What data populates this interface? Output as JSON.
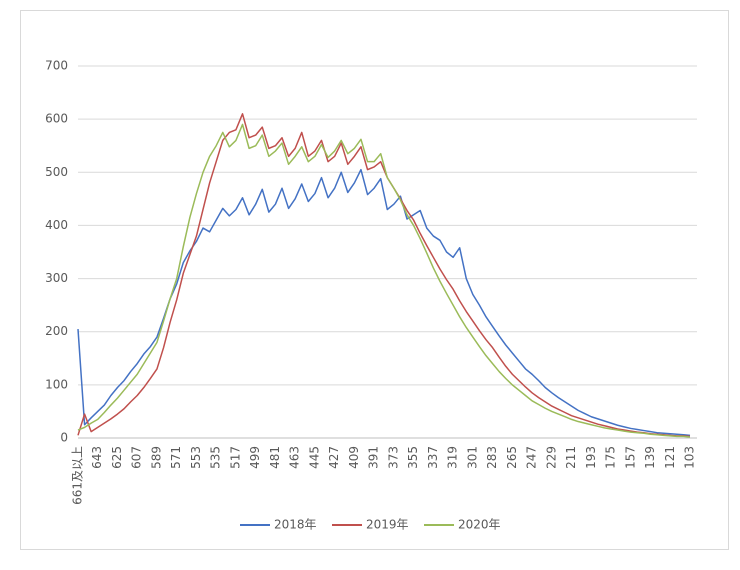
{
  "chart_data": {
    "type": "line",
    "categories": [
      "661及以上",
      null,
      null,
      "643",
      null,
      null,
      "625",
      null,
      null,
      "607",
      null,
      null,
      "589",
      null,
      null,
      "571",
      null,
      null,
      "553",
      null,
      null,
      "535",
      null,
      null,
      "517",
      null,
      null,
      "499",
      null,
      null,
      "481",
      null,
      null,
      "463",
      null,
      null,
      "445",
      null,
      null,
      "427",
      null,
      null,
      "409",
      null,
      null,
      "391",
      null,
      null,
      "373",
      null,
      null,
      "355",
      null,
      null,
      "337",
      null,
      null,
      "319",
      null,
      null,
      "301",
      null,
      null,
      "283",
      null,
      null,
      "265",
      null,
      null,
      "247",
      null,
      null,
      "229",
      null,
      null,
      "211",
      null,
      null,
      "193",
      null,
      null,
      "175",
      null,
      null,
      "157",
      null,
      null,
      "139",
      null,
      null,
      "121",
      null,
      null,
      "103"
    ],
    "series": [
      {
        "name": "2018年",
        "color": "#4472c4",
        "values": [
          205,
          25,
          38,
          50,
          62,
          80,
          95,
          108,
          125,
          140,
          158,
          172,
          190,
          225,
          262,
          290,
          330,
          352,
          370,
          395,
          388,
          410,
          432,
          418,
          430,
          452,
          420,
          440,
          468,
          425,
          440,
          470,
          432,
          450,
          478,
          445,
          460,
          490,
          452,
          470,
          500,
          462,
          480,
          505,
          458,
          470,
          488,
          430,
          440,
          455,
          412,
          420,
          428,
          395,
          380,
          372,
          350,
          340,
          358,
          300,
          270,
          250,
          228,
          210,
          192,
          175,
          160,
          145,
          130,
          120,
          108,
          95,
          85,
          76,
          68,
          60,
          52,
          46,
          40,
          36,
          32,
          28,
          24,
          21,
          18,
          16,
          14,
          12,
          10,
          9,
          8,
          7,
          6,
          5
        ]
      },
      {
        "name": "2019年",
        "color": "#c0504d",
        "values": [
          5,
          45,
          12,
          20,
          28,
          36,
          45,
          55,
          68,
          80,
          95,
          112,
          130,
          170,
          218,
          260,
          310,
          345,
          380,
          430,
          480,
          520,
          560,
          575,
          580,
          610,
          565,
          570,
          585,
          545,
          550,
          565,
          530,
          545,
          575,
          530,
          540,
          560,
          520,
          530,
          555,
          515,
          530,
          548,
          505,
          510,
          520,
          490,
          470,
          450,
          428,
          410,
          385,
          362,
          340,
          318,
          298,
          280,
          258,
          238,
          220,
          202,
          185,
          170,
          152,
          135,
          120,
          108,
          96,
          85,
          76,
          68,
          60,
          54,
          48,
          42,
          38,
          34,
          30,
          26,
          23,
          20,
          17,
          15,
          13,
          11,
          10,
          8,
          7,
          6,
          5,
          4,
          4,
          3
        ]
      },
      {
        "name": "2020年",
        "color": "#9bbb59",
        "values": [
          15,
          20,
          28,
          35,
          48,
          62,
          75,
          90,
          105,
          120,
          140,
          160,
          180,
          220,
          262,
          300,
          360,
          415,
          460,
          500,
          530,
          550,
          575,
          548,
          560,
          590,
          545,
          550,
          570,
          530,
          540,
          555,
          515,
          530,
          548,
          520,
          530,
          552,
          528,
          540,
          560,
          535,
          545,
          562,
          520,
          520,
          535,
          490,
          470,
          448,
          420,
          400,
          375,
          348,
          320,
          295,
          272,
          250,
          228,
          208,
          190,
          172,
          155,
          140,
          125,
          112,
          100,
          90,
          80,
          70,
          63,
          56,
          50,
          45,
          40,
          35,
          31,
          28,
          25,
          22,
          19,
          17,
          15,
          13,
          11,
          10,
          9,
          7,
          6,
          5,
          4,
          3,
          3,
          2
        ]
      }
    ],
    "ylim": [
      0,
      700
    ],
    "yticks": [
      0,
      100,
      200,
      300,
      400,
      500,
      600,
      700
    ],
    "grid": true,
    "legend": "bottom"
  }
}
